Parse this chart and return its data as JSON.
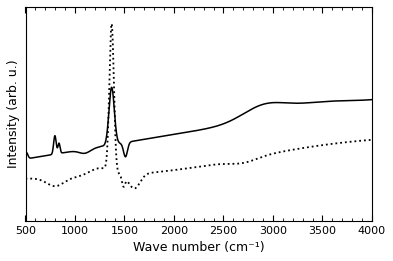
{
  "xlim": [
    500,
    4000
  ],
  "xlabel": "Wave number (cm⁻¹)",
  "ylabel": "Intensity (arb. u.)",
  "xticks": [
    500,
    1000,
    1500,
    2000,
    2500,
    3000,
    3500,
    4000
  ],
  "background_color": "#ffffff",
  "line_color": "#000000",
  "solid_linewidth": 1.1,
  "dotted_linewidth": 1.3,
  "dotted_dot_size": 2.5
}
